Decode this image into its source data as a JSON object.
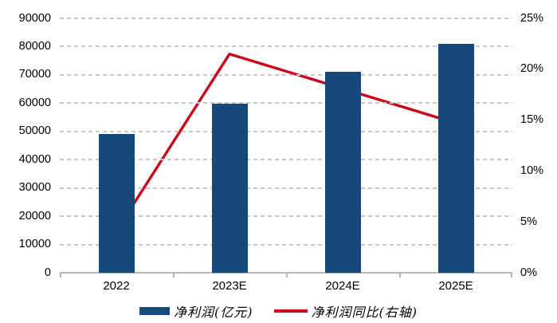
{
  "chart_data": {
    "type": "bar",
    "subtype": "bar-line-combo",
    "title": "",
    "categories": [
      "2022",
      "2023E",
      "2024E",
      "2025E"
    ],
    "series": [
      {
        "name": "净利润(亿元)",
        "type": "bar",
        "axis": "left",
        "values": [
          49000,
          59800,
          71000,
          81000
        ],
        "color": "#15497B"
      },
      {
        "name": "净利润同比(右轴)",
        "type": "line",
        "axis": "right",
        "values": [
          4.1,
          21.5,
          18.1,
          14.7
        ],
        "unit": "%",
        "color": "#C9081B"
      }
    ],
    "left_axis": {
      "min": 0,
      "max": 90000,
      "step": 10000,
      "tick_labels": [
        "0",
        "10000",
        "20000",
        "30000",
        "40000",
        "50000",
        "60000",
        "70000",
        "80000",
        "90000"
      ]
    },
    "right_axis": {
      "min": 0,
      "max": 25,
      "step": 5,
      "tick_labels": [
        "0%",
        "5%",
        "10%",
        "15%",
        "20%",
        "25%"
      ]
    },
    "grid": {
      "horizontal": true,
      "style": "dashed",
      "color": "#c7c7c7"
    },
    "axis_line_color": "#b7b7b7",
    "legend": {
      "position": "bottom",
      "items": [
        {
          "label": "净利润(亿元)",
          "swatch": "bar",
          "color": "#15497B"
        },
        {
          "label": "净利润同比(右轴)",
          "swatch": "line",
          "color": "#C9081B"
        }
      ]
    }
  }
}
